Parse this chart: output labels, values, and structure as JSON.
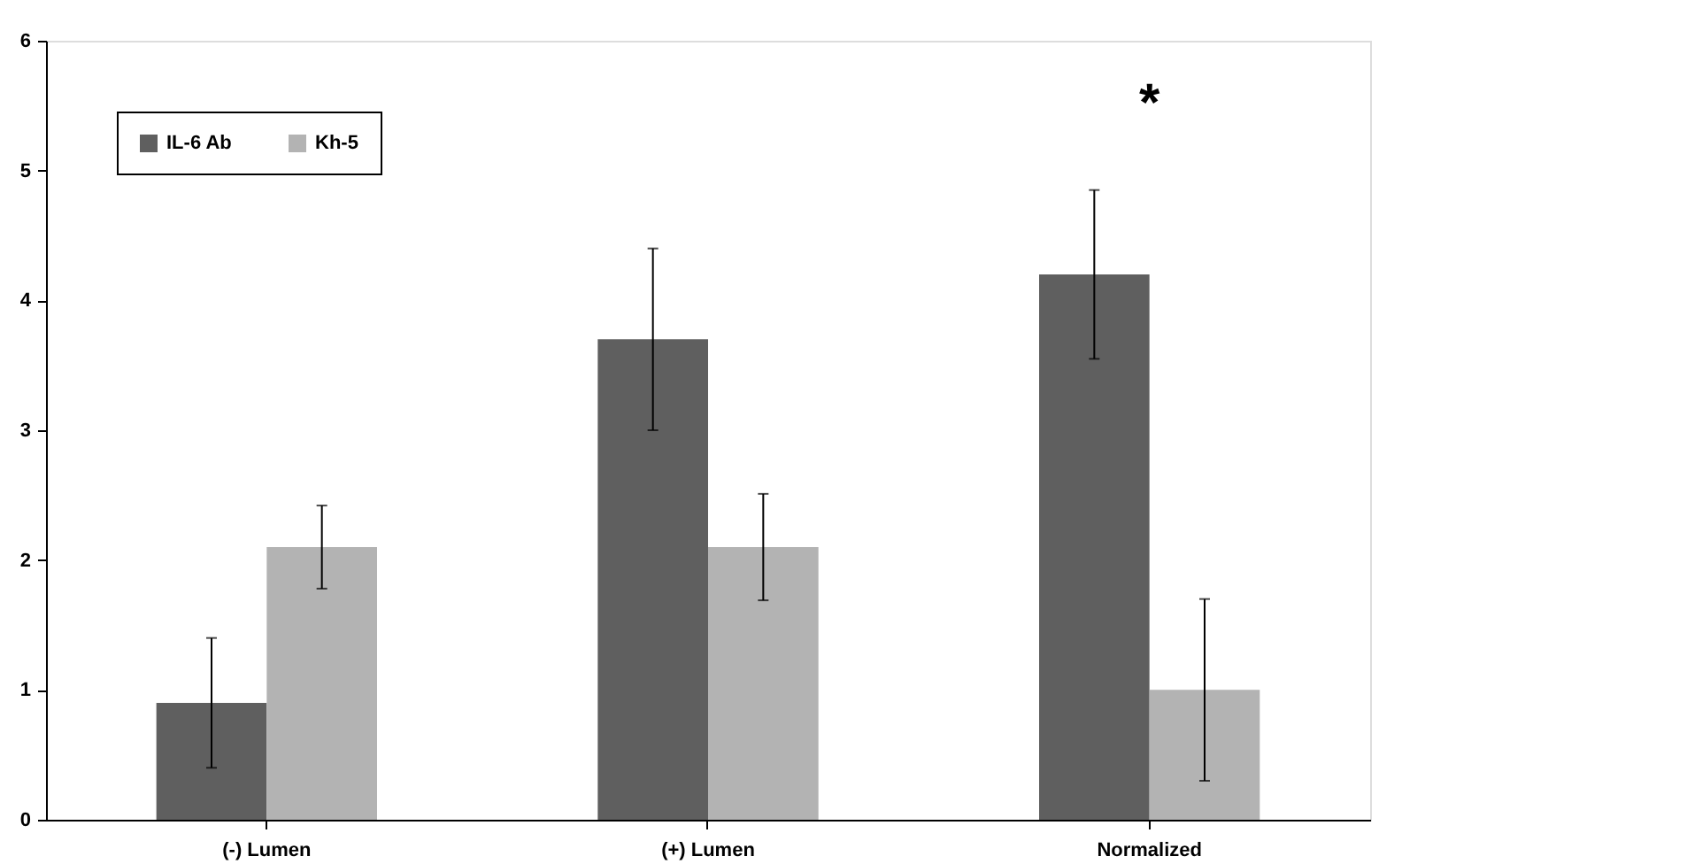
{
  "chart_data": {
    "type": "bar",
    "categories": [
      "(-) Lumen",
      "(+) Lumen",
      "Normalized"
    ],
    "series": [
      {
        "name": "IL-6 Ab",
        "color": "#5f5f5f",
        "values": [
          0.9,
          3.7,
          4.2
        ],
        "errors": [
          0.5,
          0.7,
          0.65
        ]
      },
      {
        "name": "Kh-5",
        "color": "#b3b3b3",
        "values": [
          2.1,
          2.1,
          1.0
        ],
        "errors": [
          0.32,
          0.41,
          0.7
        ]
      }
    ],
    "ylim": [
      0,
      6
    ],
    "yticks": [
      0,
      1,
      2,
      3,
      4,
      5,
      6
    ],
    "annotations": [
      "*"
    ],
    "legend": "top left",
    "grid": false
  }
}
